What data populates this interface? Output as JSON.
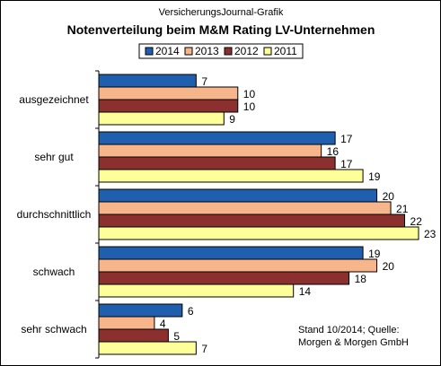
{
  "chart_data": {
    "type": "bar",
    "orientation": "horizontal",
    "supertitle": "VersicherungsJournal-Grafik",
    "title": "Notenverteilung beim M&M Rating LV-Unternehmen",
    "categories": [
      "ausgezeichnet",
      "sehr gut",
      "durchschnittlich",
      "schwach",
      "sehr schwach"
    ],
    "series": [
      {
        "name": "2014",
        "color": "#1f5fae",
        "values": [
          7,
          17,
          20,
          19,
          6
        ]
      },
      {
        "name": "2013",
        "color": "#f7b58c",
        "values": [
          10,
          16,
          21,
          20,
          4
        ]
      },
      {
        "name": "2012",
        "color": "#8b2f2f",
        "values": [
          10,
          17,
          22,
          18,
          5
        ]
      },
      {
        "name": "2011",
        "color": "#ffff99",
        "values": [
          9,
          19,
          23,
          14,
          7
        ]
      }
    ],
    "xlim": [
      0,
      23
    ],
    "legend_position": "top",
    "grid": false,
    "source_note": [
      "Stand 10/2014; Quelle:",
      "Morgen & Morgen GmbH"
    ]
  }
}
